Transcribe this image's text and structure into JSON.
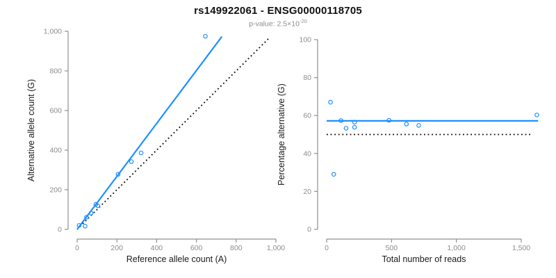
{
  "header": {
    "title": "rs149922061 - ENSG00000118705",
    "subtitle_base": "p-value: 2.5×10",
    "subtitle_exponent": "-20"
  },
  "colors": {
    "accent_blue": "#1e8fff",
    "reference_line_black": "#000000",
    "axis_gray": "#8f8f8f",
    "tick_label_gray": "#8c8c8c",
    "axis_title_dark": "#1a1a1a"
  },
  "chart_data": [
    {
      "panel": "left",
      "type": "scatter",
      "xlabel": "Reference allele count (A)",
      "ylabel": "Alternative allele count (G)",
      "xlim": [
        0,
        1000
      ],
      "ylim": [
        0,
        1000
      ],
      "grid": false,
      "legend": "none",
      "xticks": {
        "values": [
          0,
          200,
          400,
          600,
          800,
          1000
        ],
        "labels": [
          "0",
          "200",
          "400",
          "600",
          "800",
          "1,000"
        ]
      },
      "yticks": {
        "values": [
          0,
          200,
          400,
          600,
          800,
          1000
        ],
        "labels": [
          "0",
          "200",
          "400",
          "600",
          "800",
          "1,000"
        ]
      },
      "points": [
        [
          10,
          20
        ],
        [
          40,
          16
        ],
        [
          47,
          61
        ],
        [
          70,
          82
        ],
        [
          94,
          126
        ],
        [
          104,
          119
        ],
        [
          206,
          278
        ],
        [
          273,
          342
        ],
        [
          322,
          386
        ],
        [
          645,
          975
        ]
      ],
      "lines": [
        {
          "name": "regression-line",
          "style": "solid",
          "color": "#1e8fff",
          "x": [
            0,
            728
          ],
          "y": [
            0,
            973
          ]
        },
        {
          "name": "identity-line",
          "style": "dotted",
          "color": "#000000",
          "x": [
            0,
            965
          ],
          "y": [
            0,
            965
          ]
        }
      ]
    },
    {
      "panel": "right",
      "type": "scatter",
      "xlabel": "Total number of reads",
      "ylabel": "Percentage alternative (G)",
      "xlim": [
        0,
        1650
      ],
      "ylim": [
        0,
        100
      ],
      "grid": false,
      "legend": "none",
      "xticks": {
        "values": [
          0,
          500,
          1000,
          1500
        ],
        "labels": [
          "0",
          "500",
          "1,000",
          "1,500"
        ]
      },
      "yticks": {
        "values": [
          0,
          20,
          40,
          60,
          80,
          100
        ],
        "labels": [
          "0",
          "20",
          "40",
          "60",
          "80",
          "100"
        ]
      },
      "points": [
        [
          30,
          67
        ],
        [
          55,
          29
        ],
        [
          110,
          57.3
        ],
        [
          150,
          53.3
        ],
        [
          215,
          56.5
        ],
        [
          215,
          53.8
        ],
        [
          480,
          57.5
        ],
        [
          615,
          55.5
        ],
        [
          710,
          54.8
        ],
        [
          1620,
          60.3
        ]
      ],
      "lines": [
        {
          "name": "fit-line",
          "style": "solid",
          "color": "#1e8fff",
          "x": [
            0,
            1630
          ],
          "y": [
            57.2,
            57.2
          ]
        },
        {
          "name": "reference-line",
          "style": "dotted",
          "color": "#000000",
          "x": [
            0,
            1590
          ],
          "y": [
            50,
            50
          ]
        }
      ]
    }
  ]
}
